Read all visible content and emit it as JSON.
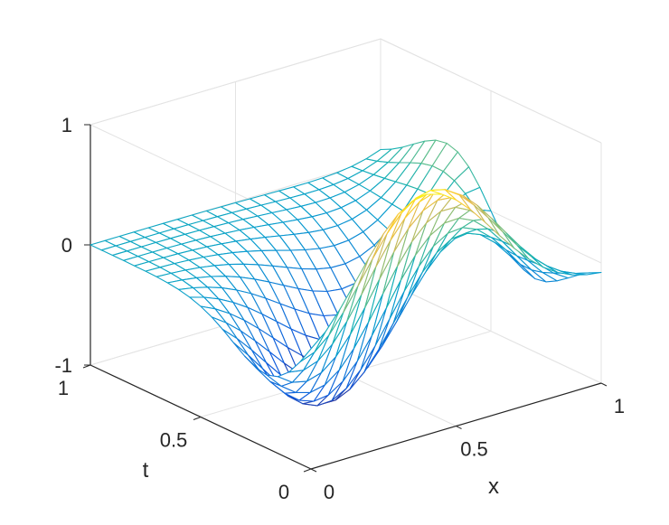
{
  "chart_data": {
    "type": "surface",
    "title": "",
    "xlabel": "x",
    "ylabel": "t",
    "zlabel": "",
    "xlim": [
      0,
      1
    ],
    "ylim": [
      0,
      1
    ],
    "zlim": [
      -1,
      1
    ],
    "x_ticks": [
      {
        "value": 0,
        "label": "0"
      },
      {
        "value": 0.5,
        "label": "0.5"
      },
      {
        "value": 1,
        "label": "1"
      }
    ],
    "y_ticks": [
      {
        "value": 0,
        "label": "0"
      },
      {
        "value": 0.5,
        "label": "0.5"
      },
      {
        "value": 1,
        "label": "1"
      }
    ],
    "z_ticks": [
      {
        "value": -1,
        "label": "-1"
      },
      {
        "value": 0,
        "label": "0"
      },
      {
        "value": 1,
        "label": "1"
      }
    ],
    "grid": true,
    "box": true,
    "colormap": "parula",
    "mesh": {
      "nx": 21,
      "ny": 21,
      "description_of_surface": "z(x,t) = -sin(pi x) * (t - 0.5*x) * exp(-12*(t - 0.5*x)^2) * 4.66 ; wave starting at x=0 and moving to smaller t",
      "peak_z": 1.0,
      "trough_z": -1.0
    }
  }
}
